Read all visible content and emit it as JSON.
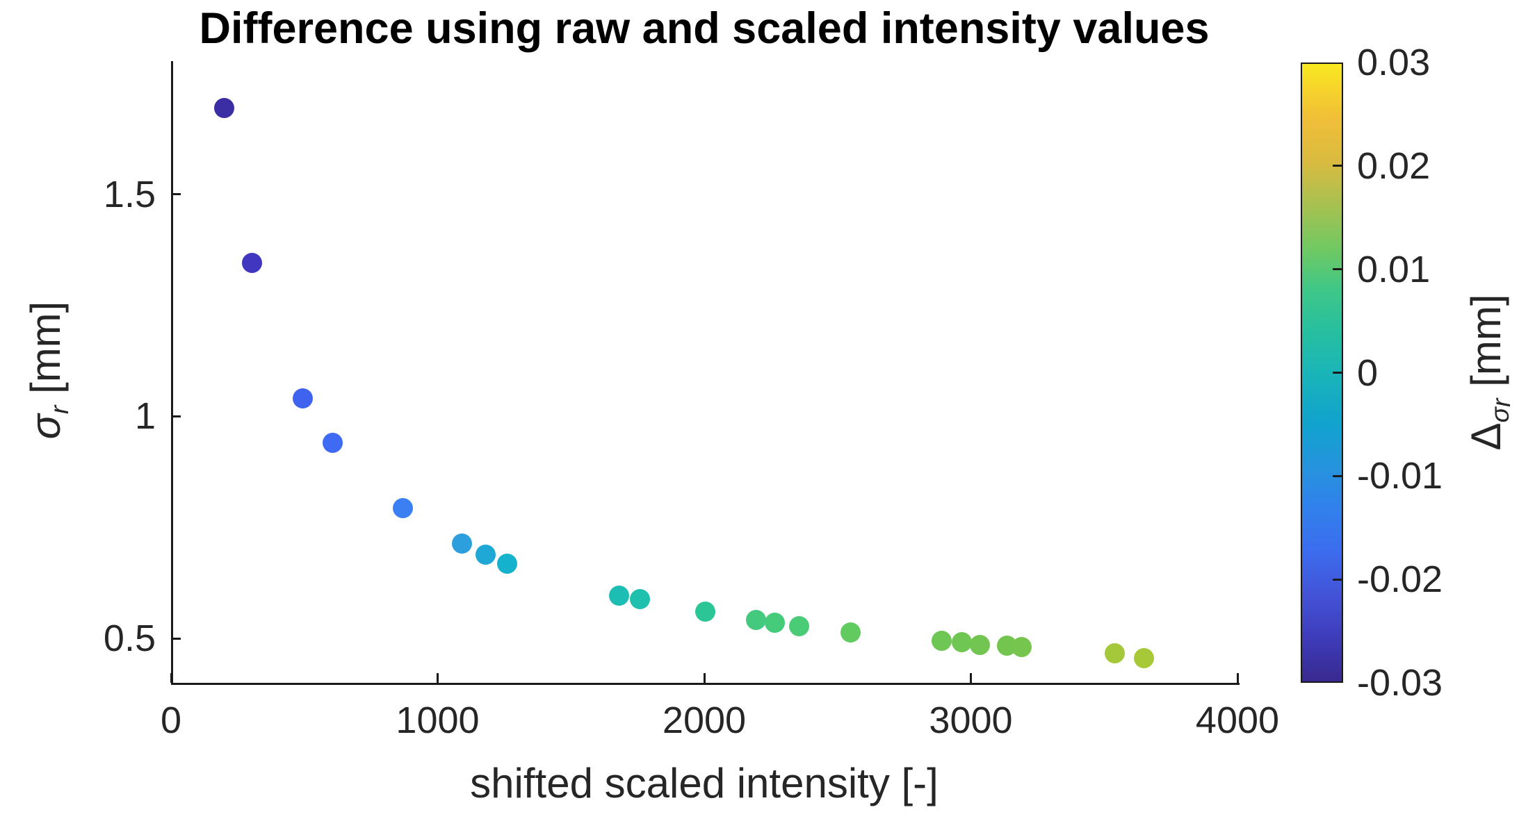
{
  "chart_data": {
    "type": "scatter",
    "title": "Difference using raw and scaled intensity values",
    "xlabel": "shifted scaled intensity [-]",
    "ylabel": {
      "symbol": "σ",
      "sub": "r",
      "unit": "[mm]"
    },
    "xlim": [
      0,
      4000
    ],
    "ylim": [
      0.4,
      1.8
    ],
    "grid": false,
    "legend": "none",
    "colormap": "parula",
    "x_ticks": [
      {
        "value": 0,
        "label": "0"
      },
      {
        "value": 1000,
        "label": "1000"
      },
      {
        "value": 2000,
        "label": "2000"
      },
      {
        "value": 3000,
        "label": "3000"
      },
      {
        "value": 4000,
        "label": "4000"
      }
    ],
    "y_ticks": [
      {
        "value": 0.5,
        "label": "0.5"
      },
      {
        "value": 1,
        "label": "1"
      },
      {
        "value": 1.5,
        "label": "1.5"
      }
    ],
    "points": [
      {
        "x": 200,
        "y": 1.694,
        "delta_mm": -0.028,
        "color": "#3b2da3"
      },
      {
        "x": 305,
        "y": 1.345,
        "delta_mm": -0.025,
        "color": "#4136c0"
      },
      {
        "x": 495,
        "y": 1.041,
        "delta_mm": -0.021,
        "color": "#4063ef"
      },
      {
        "x": 605,
        "y": 0.94,
        "delta_mm": -0.02,
        "color": "#3f6af3"
      },
      {
        "x": 870,
        "y": 0.793,
        "delta_mm": -0.017,
        "color": "#3b80f2"
      },
      {
        "x": 1090,
        "y": 0.714,
        "delta_mm": -0.012,
        "color": "#2d9fdc"
      },
      {
        "x": 1180,
        "y": 0.688,
        "delta_mm": -0.01,
        "color": "#1fa8d5"
      },
      {
        "x": 1260,
        "y": 0.669,
        "delta_mm": -0.007,
        "color": "#14b2cc"
      },
      {
        "x": 1680,
        "y": 0.597,
        "delta_mm": -0.002,
        "color": "#1dbdb4"
      },
      {
        "x": 1760,
        "y": 0.588,
        "delta_mm": -0.001,
        "color": "#1fc0ae"
      },
      {
        "x": 2005,
        "y": 0.561,
        "delta_mm": 0.002,
        "color": "#2cc696"
      },
      {
        "x": 2195,
        "y": 0.542,
        "delta_mm": 0.004,
        "color": "#43ca7f"
      },
      {
        "x": 2265,
        "y": 0.535,
        "delta_mm": 0.005,
        "color": "#46cb7a"
      },
      {
        "x": 2355,
        "y": 0.528,
        "delta_mm": 0.006,
        "color": "#4acb76"
      },
      {
        "x": 2550,
        "y": 0.514,
        "delta_mm": 0.008,
        "color": "#61cb5f"
      },
      {
        "x": 2890,
        "y": 0.495,
        "delta_mm": 0.011,
        "color": "#6ec655"
      },
      {
        "x": 2965,
        "y": 0.491,
        "delta_mm": 0.011,
        "color": "#70c653"
      },
      {
        "x": 3035,
        "y": 0.486,
        "delta_mm": 0.012,
        "color": "#72c551"
      },
      {
        "x": 3135,
        "y": 0.483,
        "delta_mm": 0.012,
        "color": "#74c54f"
      },
      {
        "x": 3190,
        "y": 0.48,
        "delta_mm": 0.013,
        "color": "#75c54e"
      },
      {
        "x": 3540,
        "y": 0.467,
        "delta_mm": 0.018,
        "color": "#a4c83a"
      },
      {
        "x": 3650,
        "y": 0.456,
        "delta_mm": 0.019,
        "color": "#a7c837"
      }
    ],
    "colorbar": {
      "label": {
        "symbol": "Δ",
        "sub": "σ",
        "subsub": "r",
        "unit": "[mm]"
      },
      "min": -0.03,
      "max": 0.03,
      "ticks": [
        {
          "value": 0.03,
          "label": "0.03",
          "mark": false
        },
        {
          "value": 0.02,
          "label": "0.02",
          "mark": true
        },
        {
          "value": 0.01,
          "label": "0.01",
          "mark": true
        },
        {
          "value": 0,
          "label": "0",
          "mark": true
        },
        {
          "value": -0.01,
          "label": "-0.01",
          "mark": true
        },
        {
          "value": -0.02,
          "label": "-0.02",
          "mark": true
        },
        {
          "value": -0.03,
          "label": "-0.03",
          "mark": false
        }
      ],
      "gradient_stops": [
        {
          "pos": 0.0,
          "color": "#38298f"
        },
        {
          "pos": 0.07,
          "color": "#3e3cba"
        },
        {
          "pos": 0.14,
          "color": "#4353d7"
        },
        {
          "pos": 0.21,
          "color": "#3c6cee"
        },
        {
          "pos": 0.28,
          "color": "#3180ec"
        },
        {
          "pos": 0.345,
          "color": "#2693dd"
        },
        {
          "pos": 0.42,
          "color": "#10a3cd"
        },
        {
          "pos": 0.5,
          "color": "#1ab5b8"
        },
        {
          "pos": 0.565,
          "color": "#26bfa0"
        },
        {
          "pos": 0.635,
          "color": "#3fc787"
        },
        {
          "pos": 0.7,
          "color": "#70c862"
        },
        {
          "pos": 0.77,
          "color": "#a6c151"
        },
        {
          "pos": 0.84,
          "color": "#d8bb40"
        },
        {
          "pos": 0.91,
          "color": "#f0be38"
        },
        {
          "pos": 0.96,
          "color": "#f6d42a"
        },
        {
          "pos": 1.0,
          "color": "#f8e921"
        }
      ]
    }
  },
  "styles": {
    "axis_color": "#1a1a1a",
    "tick_label_color": "#262626",
    "title_color": "#000000",
    "background": "#ffffff"
  }
}
